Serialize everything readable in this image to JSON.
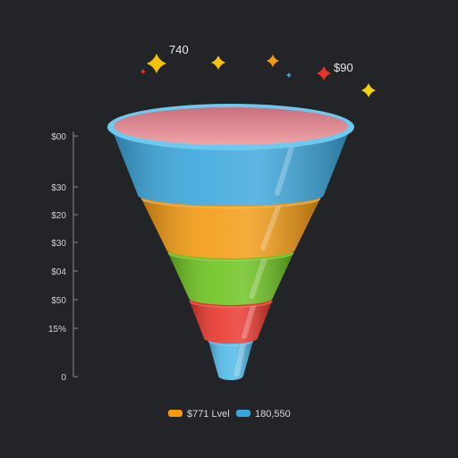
{
  "chart_data": {
    "type": "funnel",
    "title": "",
    "stages": [
      {
        "label": "",
        "value": 100,
        "color": "#3aa6dd"
      },
      {
        "label": "",
        "value": 80,
        "color": "#f39a11"
      },
      {
        "label": "",
        "value": 60,
        "color": "#6cc21e"
      },
      {
        "label": "",
        "value": 40,
        "color": "#e8352c"
      },
      {
        "label": "",
        "value": 20,
        "color": "#4fb8e6"
      }
    ],
    "rim_inner_color": "#e08a92",
    "axis": {
      "ticks": [
        "$00",
        "$30",
        "$20",
        "$30",
        "$04",
        "$50",
        "15%",
        "0"
      ]
    },
    "annotations": [
      {
        "text": "740"
      },
      {
        "text": "$90"
      }
    ],
    "legend": [
      {
        "label": "$771 Lvel",
        "color": "#f39a11"
      },
      {
        "label": "180,550",
        "color": "#3aa6dd"
      }
    ],
    "legend_position": "bottom",
    "decorations": [
      {
        "icon": "sparkle-icon",
        "color": "#f4c20d"
      },
      {
        "icon": "sparkle-icon",
        "color": "#f4c20d"
      },
      {
        "icon": "sparkle-icon",
        "color": "#f39a11"
      },
      {
        "icon": "sparkle-icon",
        "color": "#e8352c"
      },
      {
        "icon": "sparkle-icon",
        "color": "#f4d20d"
      },
      {
        "icon": "sparkle-icon",
        "color": "#3aa6dd"
      },
      {
        "icon": "sparkle-icon",
        "color": "#e8352c"
      }
    ]
  }
}
